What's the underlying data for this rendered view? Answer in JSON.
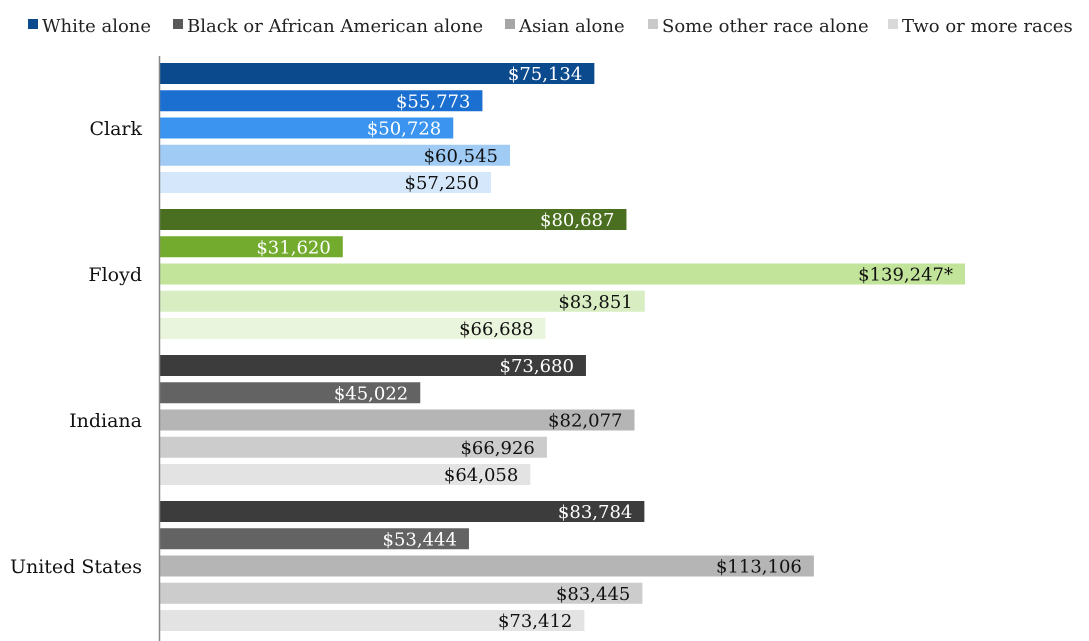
{
  "chart_data": {
    "type": "bar",
    "orientation": "horizontal",
    "title": "",
    "xlabel": "",
    "ylabel": "",
    "xlim": [
      0,
      140000
    ],
    "grid": false,
    "legend_position": "top",
    "categories": [
      "Clark",
      "Floyd",
      "Indiana",
      "United States"
    ],
    "series": [
      {
        "name": "White alone",
        "values": [
          75134,
          80687,
          73680,
          83784
        ],
        "labels": [
          "$75,134",
          "$80,687",
          "$73,680",
          "$83,784"
        ]
      },
      {
        "name": "Black or African American alone",
        "values": [
          55773,
          31620,
          45022,
          53444
        ],
        "labels": [
          "$55,773",
          "$31,620",
          "$45,022",
          "$53,444"
        ]
      },
      {
        "name": "Asian alone",
        "values": [
          50728,
          139247,
          82077,
          113106
        ],
        "labels": [
          "$50,728",
          "$139,247*",
          "$82,077",
          "$113,106"
        ]
      },
      {
        "name": "Some other race alone",
        "values": [
          60545,
          83851,
          66926,
          83445
        ],
        "labels": [
          "$60,545",
          "$83,851",
          "$66,926",
          "$83,445"
        ]
      },
      {
        "name": "Two or more races",
        "values": [
          57250,
          66688,
          64058,
          73412
        ],
        "labels": [
          "$57,250",
          "$66,688",
          "$64,058",
          "$73,412"
        ]
      }
    ],
    "legend_colors": [
      "#0b4a8c",
      "#595959",
      "#a6a6a6",
      "#c9c9c9",
      "#d9d9d9"
    ],
    "group_colors": [
      [
        "#0b4a8c",
        "#1a6fd1",
        "#3b95f0",
        "#9fcbf5",
        "#d5e8fb"
      ],
      [
        "#4a6f20",
        "#72ab2e",
        "#c2e39a",
        "#d8edc1",
        "#eaf5dd"
      ],
      [
        "#3c3c3c",
        "#636363",
        "#b5b5b5",
        "#cccccc",
        "#e3e3e3"
      ],
      [
        "#3c3c3c",
        "#636363",
        "#b5b5b5",
        "#cccccc",
        "#e3e3e3"
      ]
    ],
    "group_label_colors": [
      [
        "#ffffff",
        "#ffffff",
        "#ffffff",
        "#111111",
        "#111111"
      ],
      [
        "#ffffff",
        "#ffffff",
        "#111111",
        "#111111",
        "#111111"
      ],
      [
        "#ffffff",
        "#ffffff",
        "#111111",
        "#111111",
        "#111111"
      ],
      [
        "#ffffff",
        "#ffffff",
        "#111111",
        "#111111",
        "#111111"
      ]
    ],
    "axis_color": "#888888"
  }
}
